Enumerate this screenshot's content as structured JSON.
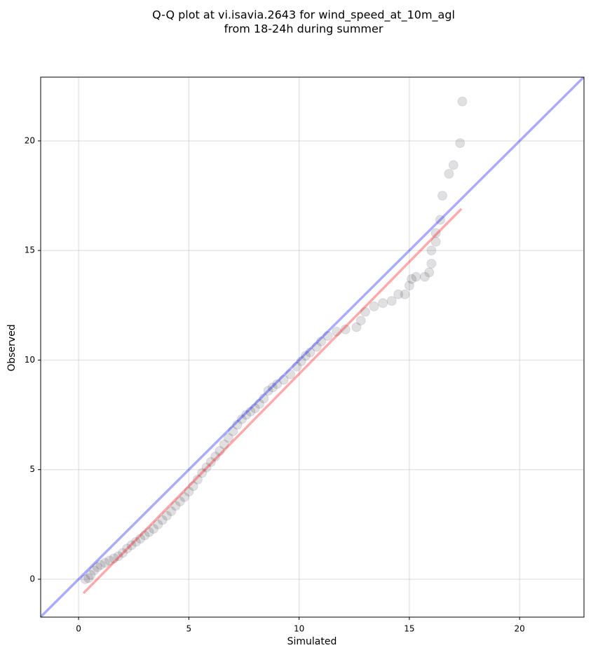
{
  "chart_data": {
    "type": "scatter",
    "title": [
      "Q-Q plot at vi.isavia.2643 for wind_speed_at_10m_agl",
      "from 18-24h during summer"
    ],
    "x_label": "Simulated",
    "y_label": "Observed",
    "xlim": [
      -1.72,
      22.92
    ],
    "ylim": [
      -1.73,
      22.91
    ],
    "xticks": [
      0,
      5,
      10,
      15,
      20
    ],
    "yticks": [
      0,
      5,
      10,
      15,
      20
    ],
    "grid": true,
    "color": "#000000",
    "edge_color": "#3a3a8c",
    "alpha": 0.12,
    "x": [
      0.3,
      0.45,
      0.55,
      0.7,
      0.85,
      1.0,
      1.2,
      1.4,
      1.6,
      1.8,
      2.0,
      2.2,
      2.4,
      2.6,
      2.8,
      3.0,
      3.2,
      3.4,
      3.6,
      3.8,
      4.0,
      4.2,
      4.4,
      4.6,
      4.8,
      5.0,
      5.2,
      5.4,
      5.6,
      5.8,
      6.0,
      6.2,
      6.4,
      6.6,
      6.8,
      7.0,
      7.2,
      7.4,
      7.6,
      7.8,
      8.0,
      8.2,
      8.4,
      8.6,
      8.8,
      9.0,
      9.3,
      9.6,
      9.9,
      10.1,
      10.3,
      10.5,
      10.8,
      11.0,
      11.3,
      11.7,
      12.1,
      12.6,
      12.8,
      13.0,
      13.4,
      13.8,
      14.2,
      14.5,
      14.8,
      15.0,
      15.1,
      15.3,
      15.7,
      15.9,
      16.0,
      16.0,
      16.2,
      16.2,
      16.4,
      16.5,
      16.8,
      17.0,
      17.3,
      17.4
    ],
    "y": [
      0.0,
      0.05,
      0.2,
      0.4,
      0.55,
      0.65,
      0.75,
      0.85,
      0.95,
      1.05,
      1.2,
      1.4,
      1.55,
      1.7,
      1.85,
      2.0,
      2.15,
      2.3,
      2.5,
      2.7,
      2.9,
      3.1,
      3.35,
      3.55,
      3.75,
      4.0,
      4.25,
      4.55,
      4.85,
      5.1,
      5.35,
      5.6,
      5.85,
      6.15,
      6.45,
      6.75,
      7.05,
      7.3,
      7.5,
      7.65,
      7.8,
      8.0,
      8.25,
      8.6,
      8.75,
      8.9,
      9.1,
      9.35,
      9.7,
      9.95,
      10.2,
      10.35,
      10.6,
      10.85,
      11.1,
      11.3,
      11.4,
      11.5,
      11.8,
      12.2,
      12.45,
      12.6,
      12.7,
      13.0,
      13.0,
      13.4,
      13.7,
      13.8,
      13.8,
      14.0,
      14.4,
      15.0,
      15.4,
      15.8,
      16.4,
      17.5,
      18.5,
      18.9,
      19.9,
      21.8
    ],
    "lines": [
      {
        "color": "#0000ff",
        "x": [
          -1.72,
          22.92
        ],
        "y": [
          -1.72,
          22.92
        ]
      },
      {
        "color": "#ff0000",
        "x": [
          0.22,
          17.36
        ],
        "y": [
          -0.64,
          16.9
        ]
      }
    ]
  }
}
